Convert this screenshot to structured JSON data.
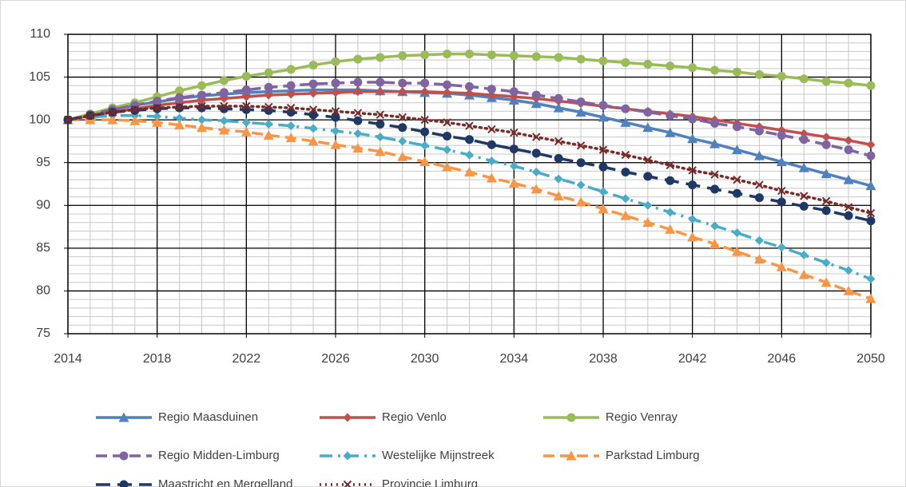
{
  "chart_data": {
    "type": "line",
    "x": [
      2014,
      2015,
      2016,
      2017,
      2018,
      2019,
      2020,
      2021,
      2022,
      2023,
      2024,
      2025,
      2026,
      2027,
      2028,
      2029,
      2030,
      2031,
      2032,
      2033,
      2034,
      2035,
      2036,
      2037,
      2038,
      2039,
      2040,
      2041,
      2042,
      2043,
      2044,
      2045,
      2046,
      2047,
      2048,
      2049,
      2050
    ],
    "xlim": [
      2014,
      2050
    ],
    "xticks": [
      2014,
      2018,
      2022,
      2026,
      2030,
      2034,
      2038,
      2042,
      2046,
      2050
    ],
    "ylim": [
      75,
      110
    ],
    "yticks": [
      75,
      80,
      85,
      90,
      95,
      100,
      105,
      110
    ],
    "grid": true,
    "legend": "bottom",
    "series": [
      {
        "name": "Regio Maasduinen",
        "color": "#4f81bd",
        "marker": "triangle",
        "dash": "solid",
        "values": [
          100,
          100.6,
          101.2,
          101.7,
          102.1,
          102.5,
          102.8,
          103.0,
          103.2,
          103.3,
          103.4,
          103.5,
          103.5,
          103.5,
          103.4,
          103.3,
          103.2,
          103.1,
          102.9,
          102.6,
          102.3,
          101.9,
          101.4,
          100.9,
          100.3,
          99.7,
          99.1,
          98.5,
          97.8,
          97.2,
          96.5,
          95.8,
          95.1,
          94.4,
          93.7,
          93.0,
          92.3
        ]
      },
      {
        "name": "Regio Venlo",
        "color": "#c0504d",
        "marker": "diamond",
        "dash": "solid",
        "values": [
          100,
          100.5,
          100.9,
          101.3,
          101.7,
          102.0,
          102.3,
          102.5,
          102.7,
          102.9,
          103.0,
          103.1,
          103.2,
          103.3,
          103.3,
          103.3,
          103.3,
          103.2,
          103.1,
          102.9,
          102.7,
          102.5,
          102.2,
          101.9,
          101.6,
          101.3,
          101.0,
          100.7,
          100.4,
          100.0,
          99.6,
          99.2,
          98.8,
          98.4,
          98.0,
          97.6,
          97.1
        ]
      },
      {
        "name": "Regio Venray",
        "color": "#9bbb59",
        "marker": "circle",
        "dash": "solid",
        "values": [
          100,
          100.7,
          101.4,
          102.0,
          102.7,
          103.4,
          104.0,
          104.6,
          105.1,
          105.5,
          105.9,
          106.4,
          106.8,
          107.1,
          107.3,
          107.5,
          107.6,
          107.7,
          107.7,
          107.6,
          107.5,
          107.4,
          107.3,
          107.1,
          106.9,
          106.7,
          106.5,
          106.3,
          106.1,
          105.8,
          105.6,
          105.3,
          105.1,
          104.8,
          104.5,
          104.3,
          104.0
        ]
      },
      {
        "name": "Regio Midden-Limburg",
        "color": "#8064a2",
        "marker": "circle",
        "dash": "dash",
        "values": [
          100,
          100.6,
          101.2,
          101.7,
          102.2,
          102.6,
          102.9,
          103.2,
          103.5,
          103.8,
          104.0,
          104.2,
          104.3,
          104.4,
          104.4,
          104.3,
          104.3,
          104.1,
          103.9,
          103.6,
          103.3,
          102.9,
          102.5,
          102.1,
          101.7,
          101.3,
          100.9,
          100.5,
          100.1,
          99.6,
          99.2,
          98.7,
          98.2,
          97.7,
          97.1,
          96.5,
          95.8
        ]
      },
      {
        "name": "Westelijke Mijnstreek",
        "color": "#4bacc6",
        "marker": "diamond",
        "dash": "dashdot",
        "values": [
          100,
          100.3,
          100.5,
          100.5,
          100.4,
          100.2,
          100.0,
          99.9,
          99.7,
          99.5,
          99.3,
          99.0,
          98.7,
          98.4,
          98.0,
          97.5,
          97.0,
          96.5,
          95.9,
          95.2,
          94.6,
          93.9,
          93.1,
          92.4,
          91.6,
          90.8,
          90.0,
          89.2,
          88.4,
          87.6,
          86.8,
          85.9,
          85.1,
          84.2,
          83.3,
          82.4,
          81.4
        ]
      },
      {
        "name": "Parkstad Limburg",
        "color": "#f79646",
        "marker": "triangle",
        "dash": "dash",
        "values": [
          100,
          100.0,
          100.0,
          99.9,
          99.7,
          99.4,
          99.1,
          98.8,
          98.6,
          98.2,
          97.9,
          97.5,
          97.1,
          96.7,
          96.3,
          95.7,
          95.1,
          94.5,
          93.9,
          93.2,
          92.6,
          91.9,
          91.1,
          90.4,
          89.6,
          88.8,
          88.0,
          87.2,
          86.3,
          85.5,
          84.6,
          83.7,
          82.8,
          81.9,
          81.0,
          80.0,
          79.1
        ]
      },
      {
        "name": "Maastricht en Mergelland",
        "color": "#1f3864",
        "marker": "circle",
        "dash": "longdash",
        "values": [
          100,
          100.5,
          100.9,
          101.1,
          101.3,
          101.4,
          101.4,
          101.3,
          101.2,
          101.1,
          100.9,
          100.6,
          100.3,
          99.9,
          99.5,
          99.1,
          98.6,
          98.1,
          97.7,
          97.1,
          96.6,
          96.1,
          95.5,
          95.0,
          94.5,
          93.9,
          93.4,
          92.9,
          92.4,
          91.9,
          91.4,
          90.9,
          90.4,
          89.9,
          89.4,
          88.8,
          88.2
        ]
      },
      {
        "name": "Provincie Limburg",
        "color": "#772c2a",
        "marker": "x",
        "dash": "dot",
        "values": [
          100,
          100.5,
          100.9,
          101.2,
          101.4,
          101.5,
          101.6,
          101.6,
          101.6,
          101.5,
          101.4,
          101.2,
          101.0,
          100.8,
          100.6,
          100.3,
          100.0,
          99.7,
          99.3,
          98.9,
          98.5,
          98.0,
          97.5,
          97.0,
          96.5,
          95.9,
          95.3,
          94.7,
          94.1,
          93.6,
          93.0,
          92.4,
          91.7,
          91.1,
          90.5,
          89.8,
          89.1
        ]
      }
    ]
  }
}
